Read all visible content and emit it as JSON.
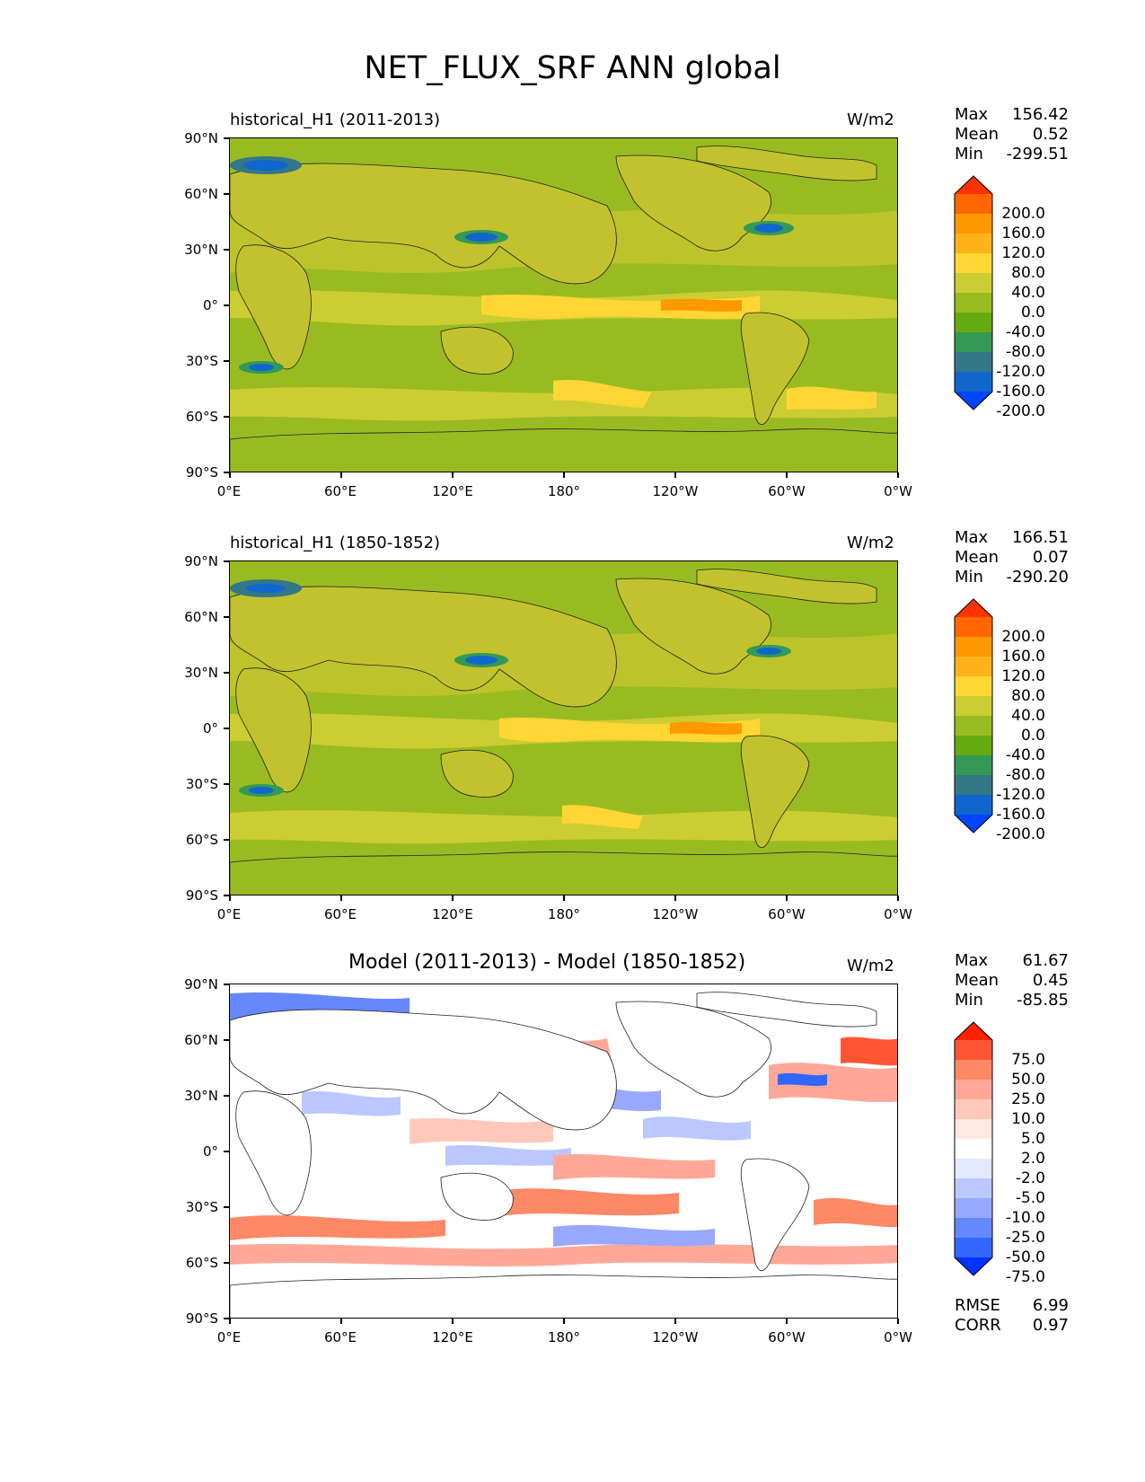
{
  "title": "NET_FLUX_SRF ANN global",
  "panels": [
    {
      "id": "test",
      "title": "historical_H1 (2011-2013)",
      "units": "W/m2",
      "stats": {
        "max_label": "Max",
        "max": "156.42",
        "mean_label": "Mean",
        "mean": "0.52",
        "min_label": "Min",
        "min": "-299.51"
      },
      "colorbar_levels": [
        "200.0",
        "160.0",
        "120.0",
        "80.0",
        "40.0",
        "0.0",
        "-40.0",
        "-80.0",
        "-120.0",
        "-160.0",
        "-200.0"
      ],
      "colorbar_colors": [
        "#ff3300",
        "#ff6600",
        "#ff9900",
        "#ffb31a",
        "#ffd633",
        "#cccc33",
        "#99bb22",
        "#66aa11",
        "#339955",
        "#337788",
        "#1166cc",
        "#0044ff"
      ]
    },
    {
      "id": "reference",
      "title": "historical_H1 (1850-1852)",
      "units": "W/m2",
      "stats": {
        "max_label": "Max",
        "max": "166.51",
        "mean_label": "Mean",
        "mean": "0.07",
        "min_label": "Min",
        "min": "-290.20"
      },
      "colorbar_levels": [
        "200.0",
        "160.0",
        "120.0",
        "80.0",
        "40.0",
        "0.0",
        "-40.0",
        "-80.0",
        "-120.0",
        "-160.0",
        "-200.0"
      ],
      "colorbar_colors": [
        "#ff3300",
        "#ff6600",
        "#ff9900",
        "#ffb31a",
        "#ffd633",
        "#cccc33",
        "#99bb22",
        "#66aa11",
        "#339955",
        "#337788",
        "#1166cc",
        "#0044ff"
      ]
    },
    {
      "id": "diff",
      "title": "Model (2011-2013) - Model (1850-1852)",
      "units": "W/m2",
      "stats": {
        "max_label": "Max",
        "max": "61.67",
        "mean_label": "Mean",
        "mean": "0.45",
        "min_label": "Min",
        "min": "-85.85"
      },
      "colorbar_levels": [
        "75.0",
        "50.0",
        "25.0",
        "10.0",
        "5.0",
        "2.0",
        "-2.0",
        "-5.0",
        "-10.0",
        "-25.0",
        "-50.0",
        "-75.0"
      ],
      "colorbar_colors": [
        "#ff2200",
        "#ff5533",
        "#ff8866",
        "#ffa899",
        "#ffc8bb",
        "#ffe8e2",
        "#ffffff",
        "#e2e8ff",
        "#bbc8ff",
        "#99a8ff",
        "#6688ff",
        "#3366ff",
        "#0033ff"
      ],
      "metrics": {
        "rmse_label": "RMSE",
        "rmse": "6.99",
        "corr_label": "CORR",
        "corr": "0.97"
      }
    }
  ],
  "lat_ticks": [
    "90°N",
    "60°N",
    "30°N",
    "0°",
    "30°S",
    "60°S",
    "90°S"
  ],
  "lon_ticks": [
    "0°E",
    "60°E",
    "120°E",
    "180°",
    "120°W",
    "60°W",
    "0°W"
  ]
}
